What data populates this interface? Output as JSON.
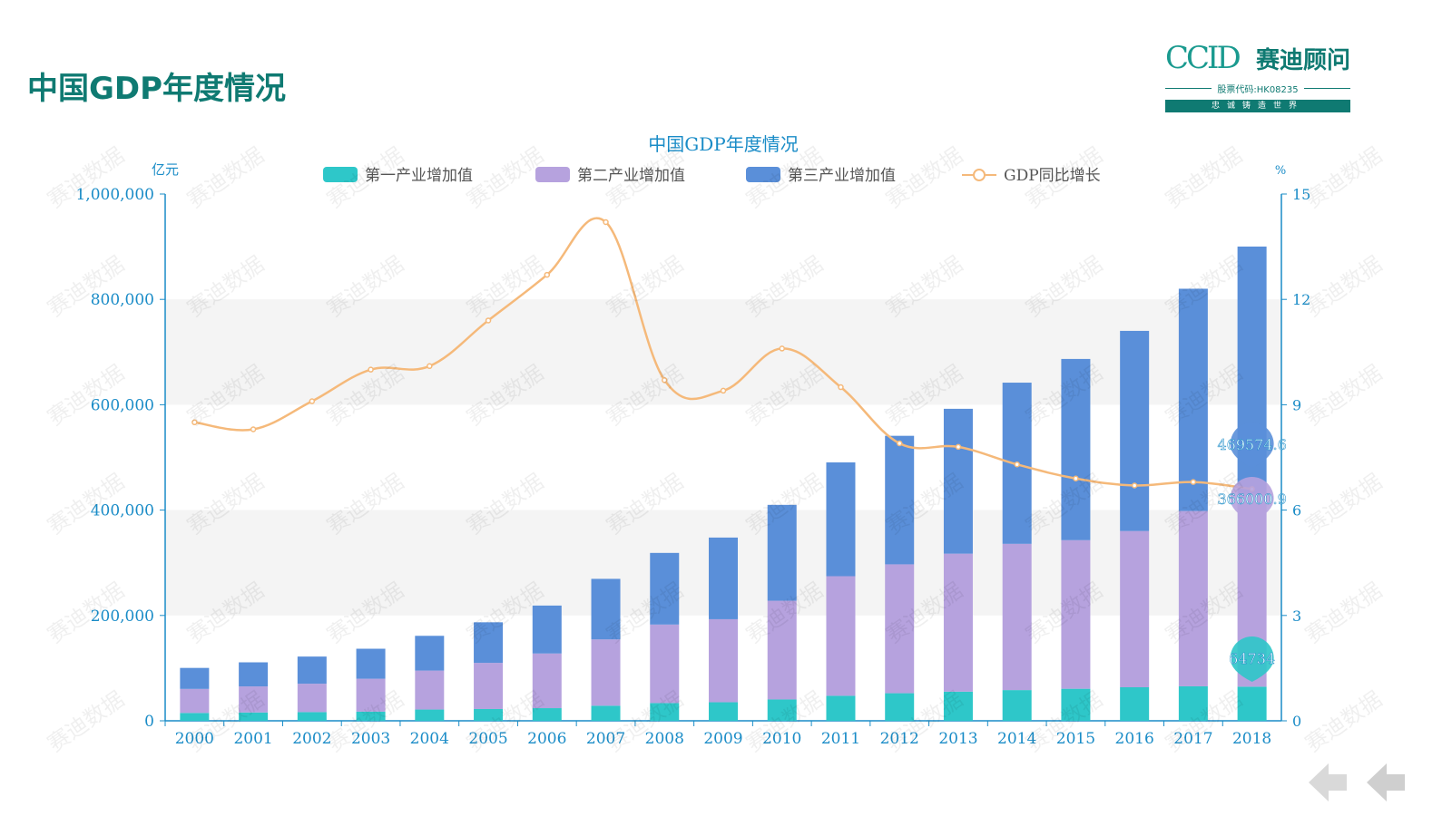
{
  "page": {
    "title": "中国GDP年度情况"
  },
  "logo": {
    "brand": "CCID",
    "name_cn": "赛迪顾问",
    "stock_code": "股票代码:HK08235",
    "slogan": "忠诚铸造世界"
  },
  "watermark_text": "赛迪数据",
  "colors": {
    "title": "#0f7a72",
    "primary": "#2ec7c9",
    "secondary": "#b6a2de",
    "tertiary": "#5a8fd9",
    "growth": "#f5b97a",
    "axis": "#1a8cc7",
    "band": "#f4f4f4"
  },
  "chart_data": {
    "type": "bar",
    "stacked": true,
    "title": "中国GDP年度情况",
    "ylabel_left": "亿元",
    "ylabel_right": "%",
    "ylim_left": [
      0,
      1000000
    ],
    "ylim_right": [
      0,
      15
    ],
    "yticks_left": [
      "0",
      "200,000",
      "400,000",
      "600,000",
      "800,000",
      "1,000,000"
    ],
    "yticks_right": [
      "0",
      "3",
      "6",
      "9",
      "12",
      "15"
    ],
    "legend_position": "top",
    "categories": [
      "2000",
      "2001",
      "2002",
      "2003",
      "2004",
      "2005",
      "2006",
      "2007",
      "2008",
      "2009",
      "2010",
      "2011",
      "2012",
      "2013",
      "2014",
      "2015",
      "2016",
      "2017",
      "2018"
    ],
    "series": [
      {
        "name": "第一产业增加值",
        "kind": "bar",
        "values": [
          14945,
          15781,
          16537,
          17381,
          21412,
          22420,
          24040,
          28627,
          33702,
          35226,
          40534,
          47486,
          52374,
          55324,
          58344,
          60862,
          63671,
          65468,
          64734
        ]
      },
      {
        "name": "第二产业增加值",
        "kind": "bar",
        "values": [
          45555,
          49512,
          53897,
          62436,
          73904,
          87598,
          103720,
          125831,
          149003,
          157639,
          187383,
          227039,
          244643,
          261956,
          277572,
          282040,
          296547,
          332743,
          366000.9
        ]
      },
      {
        "name": "第三产业增加值",
        "kind": "bar",
        "values": [
          39898,
          45700,
          51500,
          57000,
          66000,
          77000,
          91000,
          115000,
          136000,
          155000,
          182000,
          216000,
          244000,
          275000,
          306000,
          344000,
          380000,
          422000,
          469574.6
        ]
      },
      {
        "name": "GDP同比增长",
        "kind": "line",
        "axis": "right",
        "values": [
          8.5,
          8.3,
          9.1,
          10.0,
          10.1,
          11.4,
          12.7,
          14.2,
          9.7,
          9.4,
          10.6,
          9.5,
          7.9,
          7.8,
          7.3,
          6.9,
          6.7,
          6.8,
          6.6
        ]
      }
    ],
    "data_labels": [
      "64734",
      "366000.9",
      "469574.6"
    ]
  }
}
